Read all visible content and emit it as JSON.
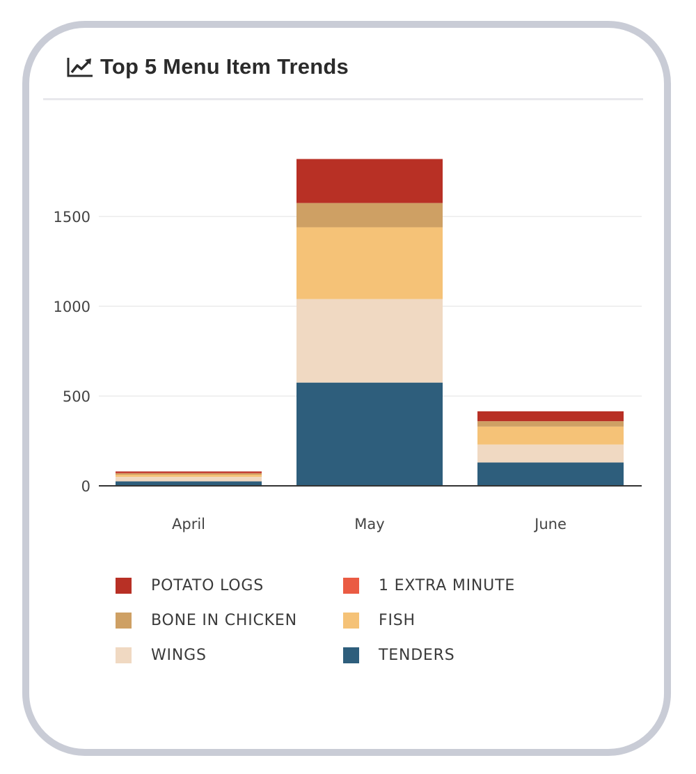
{
  "card": {
    "title": "Top 5 Menu Item Trends",
    "icon": "trend-chart-icon"
  },
  "chart_data": {
    "type": "bar",
    "stacked": true,
    "title": "Top 5 Menu Item Trends",
    "categories": [
      "April",
      "May",
      "June"
    ],
    "ylim": [
      0,
      1800
    ],
    "yticks": [
      0,
      500,
      1000,
      1500
    ],
    "yticks_labels": [
      "0",
      "500",
      "1000",
      "1500"
    ],
    "grid": true,
    "legend_position": "bottom",
    "series": [
      {
        "name": "TENDERS",
        "color": "#2e5e7c",
        "values": [
          25,
          575,
          130
        ]
      },
      {
        "name": "WINGS",
        "color": "#f0d9c2",
        "values": [
          25,
          465,
          100
        ]
      },
      {
        "name": "FISH",
        "color": "#f5c277",
        "values": [
          12,
          400,
          100
        ]
      },
      {
        "name": "BONE IN CHICKEN",
        "color": "#cea064",
        "values": [
          8,
          135,
          30
        ]
      },
      {
        "name": "1 EXTRA MINUTE",
        "color": "#ea5b43",
        "values": [
          2,
          0,
          0
        ]
      },
      {
        "name": "POTATO LOGS",
        "color": "#b83025",
        "values": [
          8,
          245,
          55
        ]
      }
    ],
    "legend_order": [
      "POTATO LOGS",
      "1 EXTRA MINUTE",
      "BONE IN CHICKEN",
      "FISH",
      "WINGS",
      "TENDERS"
    ]
  }
}
